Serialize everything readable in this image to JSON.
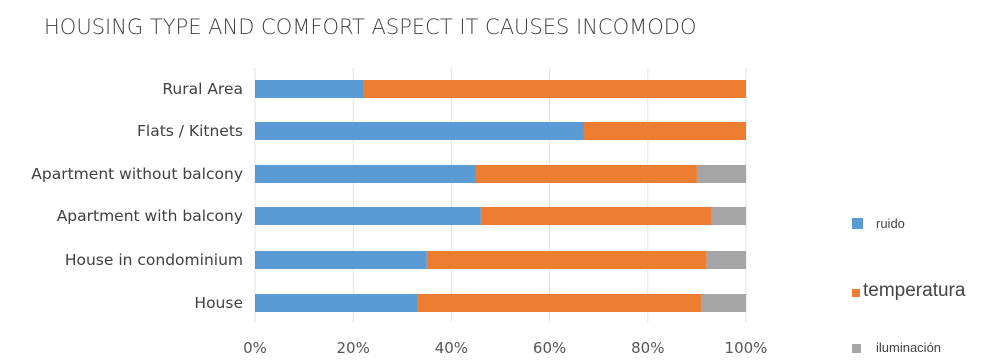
{
  "chart_data": {
    "type": "bar",
    "orientation": "horizontal",
    "stacked": "percent",
    "title": "HOUSING TYPE AND COMFORT ASPECT IT CAUSES  INCOMODO",
    "categories": [
      "Rural Area",
      "Flats / Kitnets",
      "Apartment without balcony",
      "Apartment with balcony",
      "House in condominium",
      "House"
    ],
    "series": [
      {
        "name": "ruido",
        "color": "#5B9BD5",
        "values": [
          22,
          67,
          45,
          46,
          35,
          33
        ]
      },
      {
        "name": "temperatura",
        "color": "#ED7D31",
        "values": [
          78,
          33,
          45,
          47,
          57,
          58
        ]
      },
      {
        "name": "iluminación",
        "color": "#A5A5A5",
        "values": [
          0,
          0,
          10,
          7,
          8,
          9
        ]
      }
    ],
    "xlim": [
      0,
      100
    ],
    "x_ticks": [
      "0%",
      "20%",
      "40%",
      "60%",
      "80%",
      "100%"
    ],
    "grid": true,
    "legend_position": "right"
  }
}
